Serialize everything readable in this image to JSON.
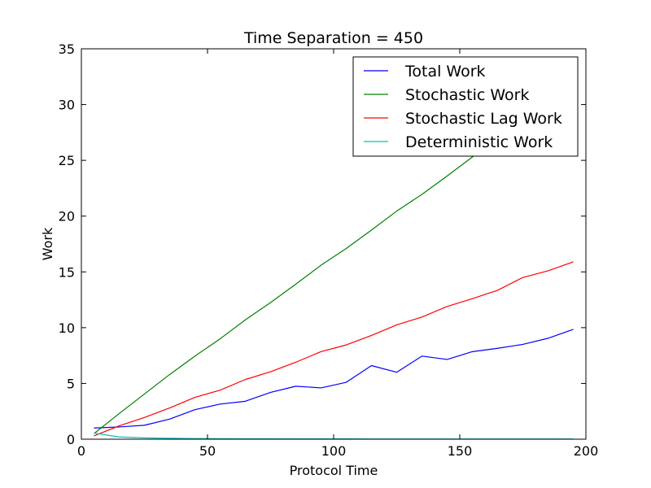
{
  "chart_data": {
    "type": "line",
    "title": "Time Separation = 450",
    "xlabel": "Protocol Time",
    "ylabel": "Work",
    "xlim": [
      0,
      200
    ],
    "ylim": [
      0,
      35
    ],
    "xticks": [
      0,
      50,
      100,
      150,
      200
    ],
    "yticks": [
      0,
      5,
      10,
      15,
      20,
      25,
      30,
      35
    ],
    "grid": false,
    "legend_position": "top-right",
    "x": [
      5,
      15,
      25,
      35,
      45,
      55,
      65,
      75,
      85,
      95,
      105,
      115,
      125,
      135,
      145,
      155,
      165,
      175,
      185,
      195
    ],
    "series": [
      {
        "name": "Total Work",
        "color": "#0000ff",
        "values": [
          1.0,
          1.1,
          1.25,
          1.8,
          2.65,
          3.15,
          3.4,
          4.2,
          4.75,
          4.6,
          5.1,
          6.6,
          6.0,
          7.45,
          7.15,
          7.85,
          8.15,
          8.5,
          9.05,
          9.85
        ]
      },
      {
        "name": "Stochastic Work",
        "color": "#008000",
        "values": [
          0.5,
          2.3,
          4.05,
          5.8,
          7.45,
          9.0,
          10.7,
          12.25,
          13.9,
          15.6,
          17.1,
          18.75,
          20.45,
          21.95,
          23.6,
          25.3,
          27.0,
          28.7,
          30.4,
          32.1
        ]
      },
      {
        "name": "Stochastic Lag Work",
        "color": "#ff0000",
        "values": [
          0.3,
          1.2,
          1.95,
          2.8,
          3.75,
          4.4,
          5.35,
          6.05,
          6.9,
          7.85,
          8.45,
          9.3,
          10.25,
          10.95,
          11.9,
          12.6,
          13.35,
          14.5,
          15.1,
          15.9
        ]
      },
      {
        "name": "Deterministic Work",
        "color": "#00bfbf",
        "values": [
          0.55,
          0.2,
          0.12,
          0.08,
          0.06,
          0.05,
          0.04,
          0.04,
          0.03,
          0.03,
          0.03,
          0.02,
          0.02,
          0.02,
          0.02,
          0.02,
          0.02,
          0.02,
          0.02,
          0.02
        ]
      }
    ]
  }
}
